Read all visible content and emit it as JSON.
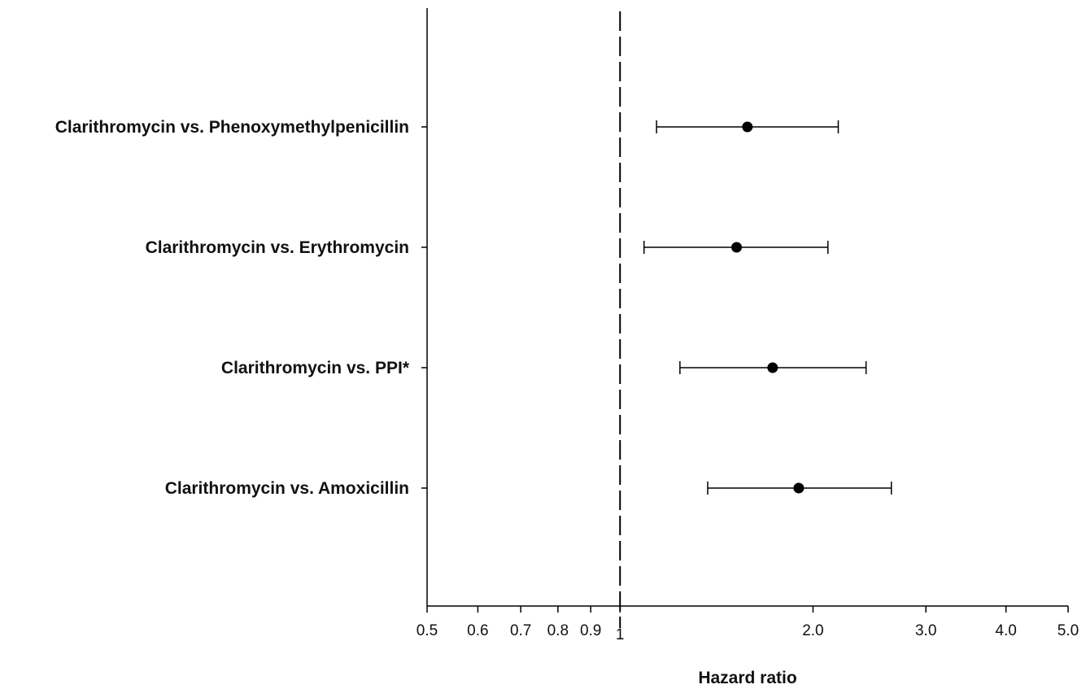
{
  "chart_data": {
    "type": "scatter",
    "subtype": "forest-plot",
    "title": "",
    "xlabel": "Hazard ratio",
    "ylabel": "",
    "x_scale": "log",
    "xlim": [
      0.5,
      5.0
    ],
    "reference_line": 1,
    "grid": false,
    "x_ticks": [
      {
        "value": 0.5,
        "label": "0.5"
      },
      {
        "value": 0.6,
        "label": "0.6"
      },
      {
        "value": 0.7,
        "label": "0.7"
      },
      {
        "value": 0.8,
        "label": "0.8"
      },
      {
        "value": 0.9,
        "label": "0.9"
      },
      {
        "value": 1,
        "label": "1"
      },
      {
        "value": 2,
        "label": "2.0"
      },
      {
        "value": 3,
        "label": "3.0"
      },
      {
        "value": 4,
        "label": "4.0"
      },
      {
        "value": 5,
        "label": "5.0"
      }
    ],
    "categories": [
      "Clarithromycin vs. Phenoxymethylpenicillin",
      "Clarithromycin vs. Erythromycin",
      "Clarithromycin vs. PPI*",
      "Clarithromycin vs. Amoxicillin"
    ],
    "estimates": [
      1.58,
      1.52,
      1.73,
      1.9
    ],
    "ci_lower": [
      1.14,
      1.09,
      1.24,
      1.37
    ],
    "ci_upper": [
      2.19,
      2.11,
      2.42,
      2.65
    ],
    "colors": {
      "marker": "#000000",
      "axis": "#000000"
    }
  }
}
